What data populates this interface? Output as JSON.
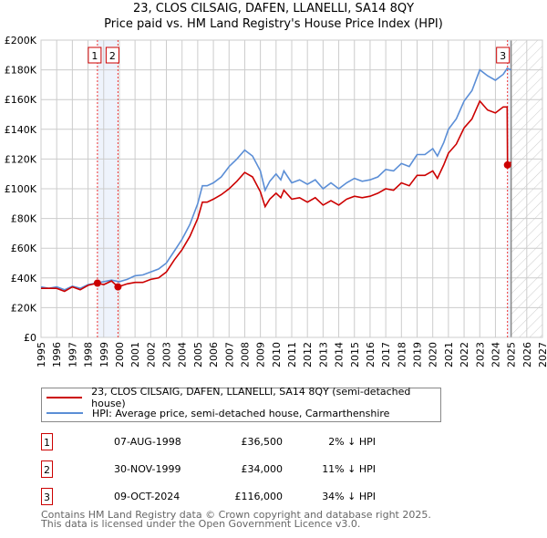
{
  "chart_data": {
    "type": "line",
    "title": "23, CLOS CILSAIG, DAFEN, LLANELLI, SA14 8QY",
    "subtitle": "Price paid vs. HM Land Registry's House Price Index (HPI)",
    "xlim": [
      1995,
      2027
    ],
    "ylim": [
      0,
      200000
    ],
    "x_ticks": [
      "1995",
      "1996",
      "1997",
      "1998",
      "1999",
      "2000",
      "2001",
      "2002",
      "2003",
      "2004",
      "2005",
      "2006",
      "2007",
      "2008",
      "2009",
      "2010",
      "2011",
      "2012",
      "2013",
      "2014",
      "2015",
      "2016",
      "2017",
      "2018",
      "2019",
      "2020",
      "2021",
      "2022",
      "2023",
      "2024",
      "2025",
      "2026",
      "2027"
    ],
    "y_ticks": [
      "£0",
      "£20K",
      "£40K",
      "£60K",
      "£80K",
      "£100K",
      "£120K",
      "£140K",
      "£160K",
      "£180K",
      "£200K"
    ],
    "grid": true,
    "forecast_from": 2025,
    "series": [
      {
        "name": "23, CLOS CILSAIG, DAFEN, LLANELLI, SA14 8QY (semi-detached house)",
        "color": "#cc0000",
        "x": [
          1995,
          1996,
          1996.5,
          1997,
          1997.5,
          1998,
          1998.6,
          1999,
          1999.5,
          1999.91,
          2000.5,
          2001,
          2001.5,
          2002,
          2002.5,
          2003,
          2003.5,
          2004,
          2004.5,
          2005,
          2005.3,
          2005.6,
          2006,
          2006.5,
          2007,
          2007.5,
          2008,
          2008.5,
          2009,
          2009.3,
          2009.6,
          2010,
          2010.3,
          2010.5,
          2011,
          2011.5,
          2012,
          2012.5,
          2013,
          2013.5,
          2014,
          2014.5,
          2015,
          2015.5,
          2016,
          2016.5,
          2017,
          2017.5,
          2018,
          2018.5,
          2019,
          2019.5,
          2020,
          2020.3,
          2020.7,
          2021,
          2021.5,
          2022,
          2022.5,
          2023,
          2023.5,
          2024,
          2024.5,
          2024.75,
          2024.77,
          2025
        ],
        "y": [
          33,
          33,
          31,
          34,
          32,
          35,
          36.5,
          35.5,
          38,
          34,
          36,
          37,
          37,
          39,
          40,
          44,
          52,
          59,
          68,
          80,
          91,
          91,
          93,
          96,
          100,
          105,
          111,
          108,
          98,
          88,
          93,
          97,
          94,
          99,
          93,
          94,
          91,
          94,
          89,
          92,
          89,
          93,
          95,
          94,
          95,
          97,
          100,
          99,
          104,
          102,
          109,
          109,
          112,
          107,
          116,
          124,
          130,
          141,
          147,
          159,
          153,
          151,
          155,
          155,
          116,
          118
        ]
      },
      {
        "name": "HPI: Average price, semi-detached house, Carmarthenshire",
        "color": "#5b8ed6",
        "x": [
          1995,
          1995.5,
          1996,
          1996.5,
          1997,
          1997.5,
          1998,
          1998.5,
          1999,
          1999.5,
          2000,
          2000.5,
          2001,
          2001.5,
          2002,
          2002.5,
          2003,
          2003.5,
          2004,
          2004.5,
          2005,
          2005.3,
          2005.6,
          2006,
          2006.5,
          2007,
          2007.5,
          2008,
          2008.5,
          2009,
          2009.3,
          2009.6,
          2010,
          2010.3,
          2010.5,
          2011,
          2011.5,
          2012,
          2012.5,
          2013,
          2013.5,
          2014,
          2014.5,
          2015,
          2015.5,
          2016,
          2016.5,
          2017,
          2017.5,
          2018,
          2018.5,
          2019,
          2019.5,
          2020,
          2020.3,
          2020.7,
          2021,
          2021.5,
          2022,
          2022.5,
          2023,
          2023.5,
          2024,
          2024.5,
          2024.75,
          2025
        ],
        "y": [
          34,
          33,
          34,
          32,
          34.5,
          33,
          35.5,
          36.5,
          37.5,
          38.5,
          37.5,
          39,
          41.5,
          42,
          44,
          46,
          50,
          58,
          66,
          76,
          90,
          102,
          102,
          104,
          108,
          115,
          120,
          126,
          122,
          112,
          99,
          105,
          110,
          106,
          112,
          104,
          106,
          103,
          106,
          100,
          104,
          100,
          104,
          107,
          105,
          106,
          108,
          113,
          112,
          117,
          115,
          123,
          123,
          127,
          122,
          131,
          140,
          147,
          159,
          166,
          180,
          176,
          173,
          177,
          181,
          180
        ]
      }
    ],
    "y_unit": "thousands GBP",
    "sales": [
      {
        "label": "1",
        "x": 1998.6,
        "price": 36.5,
        "date": "07-AUG-1998",
        "price_text": "£36,500",
        "hpi_text": "2% ↓ HPI"
      },
      {
        "label": "2",
        "x": 1999.91,
        "price": 34,
        "date": "30-NOV-1999",
        "price_text": "£34,000",
        "hpi_text": "11% ↓ HPI"
      },
      {
        "label": "3",
        "x": 2024.77,
        "price": 116,
        "date": "09-OCT-2024",
        "price_text": "£116,000",
        "hpi_text": "34% ↓ HPI"
      }
    ]
  },
  "title_line1": "23, CLOS CILSAIG, DAFEN, LLANELLI, SA14 8QY",
  "title_line2": "Price paid vs. HM Land Registry's House Price Index (HPI)",
  "legend": {
    "red": "23, CLOS CILSAIG, DAFEN, LLANELLI, SA14 8QY (semi-detached house)",
    "blue": "HPI: Average price, semi-detached house, Carmarthenshire"
  },
  "footer": {
    "line1": "Contains HM Land Registry data © Crown copyright and database right 2025.",
    "line2": "This data is licensed under the Open Government Licence v3.0."
  }
}
